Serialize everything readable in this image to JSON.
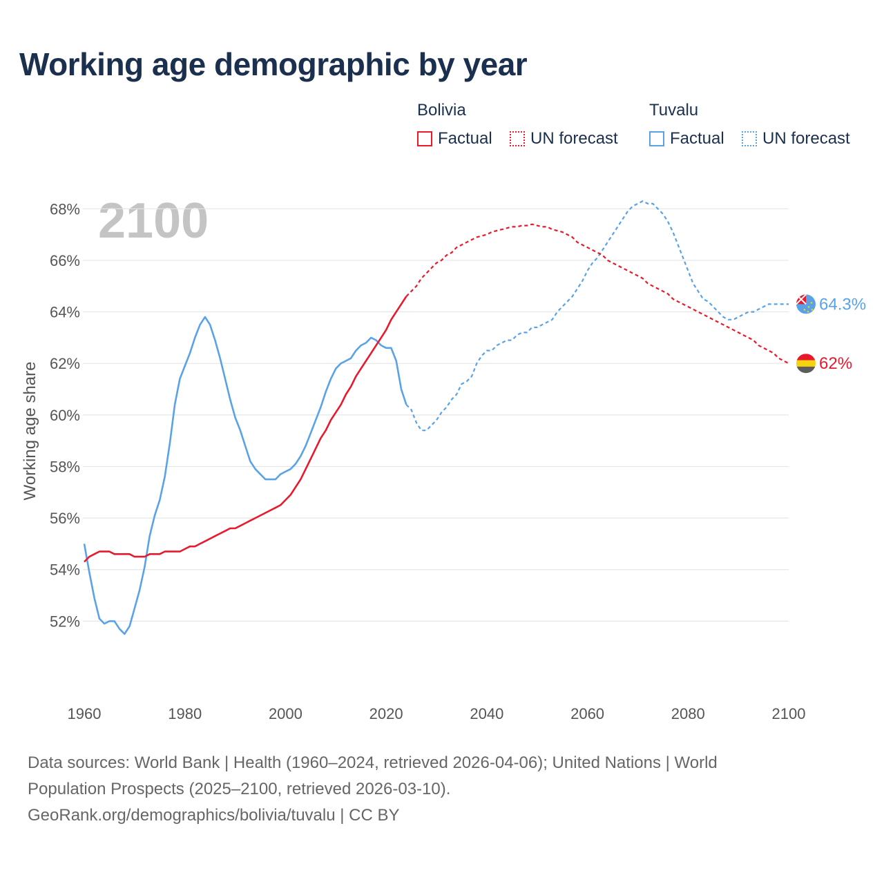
{
  "title": "Working age demographic by year",
  "legend": {
    "groups": [
      {
        "country": "Bolivia",
        "factual": "Factual",
        "forecast": "UN forecast"
      },
      {
        "country": "Tuvalu",
        "factual": "Factual",
        "forecast": "UN forecast"
      }
    ]
  },
  "colors": {
    "bolivia": "#e8192c",
    "tuvalu": "#5aa2e8",
    "grid": "#e6e6e6",
    "axis_text": "#555555",
    "year_watermark": "#c4c4c4"
  },
  "footer": {
    "line1": "Data sources: World Bank | Health (1960–2024, retrieved 2026-04-06); United Nations | World",
    "line2": "Population Prospects (2025–2100, retrieved 2026-03-10).",
    "line3": "GeoRank.org/demographics/bolivia/tuvalu | CC BY"
  },
  "chart_data": {
    "type": "line",
    "year_label": "2100",
    "ylabel": "Working age share",
    "xlim": [
      1960,
      2100
    ],
    "ylim": [
      50,
      69
    ],
    "x_ticks": [
      1960,
      1980,
      2000,
      2020,
      2040,
      2060,
      2080,
      2100
    ],
    "y_ticks": [
      52,
      54,
      56,
      58,
      60,
      62,
      64,
      66,
      68
    ],
    "y_tick_labels": [
      "52%",
      "54%",
      "56%",
      "58%",
      "60%",
      "62%",
      "64%",
      "66%",
      "68%"
    ],
    "x_tick_labels": [
      "1960",
      "1980",
      "2000",
      "2020",
      "2040",
      "2060",
      "2080",
      "2100"
    ],
    "series": [
      {
        "name": "Bolivia",
        "factual_years": [
          1960,
          2024
        ],
        "forecast_years": [
          2024,
          2100
        ],
        "end_label": "62%",
        "points": [
          [
            1960,
            54.3
          ],
          [
            1961,
            54.5
          ],
          [
            1962,
            54.6
          ],
          [
            1963,
            54.7
          ],
          [
            1964,
            54.7
          ],
          [
            1965,
            54.7
          ],
          [
            1966,
            54.6
          ],
          [
            1967,
            54.6
          ],
          [
            1968,
            54.6
          ],
          [
            1969,
            54.6
          ],
          [
            1970,
            54.5
          ],
          [
            1971,
            54.5
          ],
          [
            1972,
            54.5
          ],
          [
            1973,
            54.6
          ],
          [
            1974,
            54.6
          ],
          [
            1975,
            54.6
          ],
          [
            1976,
            54.7
          ],
          [
            1977,
            54.7
          ],
          [
            1978,
            54.7
          ],
          [
            1979,
            54.7
          ],
          [
            1980,
            54.8
          ],
          [
            1981,
            54.9
          ],
          [
            1982,
            54.9
          ],
          [
            1983,
            55.0
          ],
          [
            1984,
            55.1
          ],
          [
            1985,
            55.2
          ],
          [
            1986,
            55.3
          ],
          [
            1987,
            55.4
          ],
          [
            1988,
            55.5
          ],
          [
            1989,
            55.6
          ],
          [
            1990,
            55.6
          ],
          [
            1991,
            55.7
          ],
          [
            1992,
            55.8
          ],
          [
            1993,
            55.9
          ],
          [
            1994,
            56.0
          ],
          [
            1995,
            56.1
          ],
          [
            1996,
            56.2
          ],
          [
            1997,
            56.3
          ],
          [
            1998,
            56.4
          ],
          [
            1999,
            56.5
          ],
          [
            2000,
            56.7
          ],
          [
            2001,
            56.9
          ],
          [
            2002,
            57.2
          ],
          [
            2003,
            57.5
          ],
          [
            2004,
            57.9
          ],
          [
            2005,
            58.3
          ],
          [
            2006,
            58.7
          ],
          [
            2007,
            59.1
          ],
          [
            2008,
            59.4
          ],
          [
            2009,
            59.8
          ],
          [
            2010,
            60.1
          ],
          [
            2011,
            60.4
          ],
          [
            2012,
            60.8
          ],
          [
            2013,
            61.1
          ],
          [
            2014,
            61.5
          ],
          [
            2015,
            61.8
          ],
          [
            2016,
            62.1
          ],
          [
            2017,
            62.4
          ],
          [
            2018,
            62.7
          ],
          [
            2019,
            63.0
          ],
          [
            2020,
            63.3
          ],
          [
            2021,
            63.7
          ],
          [
            2022,
            64.0
          ],
          [
            2023,
            64.3
          ],
          [
            2024,
            64.6
          ],
          [
            2025,
            64.8
          ],
          [
            2026,
            65.0
          ],
          [
            2027,
            65.3
          ],
          [
            2028,
            65.5
          ],
          [
            2029,
            65.7
          ],
          [
            2030,
            65.9
          ],
          [
            2031,
            66.0
          ],
          [
            2032,
            66.2
          ],
          [
            2033,
            66.3
          ],
          [
            2034,
            66.5
          ],
          [
            2035,
            66.6
          ],
          [
            2036,
            66.7
          ],
          [
            2037,
            66.8
          ],
          [
            2038,
            66.9
          ],
          [
            2039,
            66.95
          ],
          [
            2040,
            67.0
          ],
          [
            2041,
            67.1
          ],
          [
            2042,
            67.15
          ],
          [
            2043,
            67.2
          ],
          [
            2044,
            67.25
          ],
          [
            2045,
            67.3
          ],
          [
            2046,
            67.3
          ],
          [
            2047,
            67.35
          ],
          [
            2048,
            67.35
          ],
          [
            2049,
            67.4
          ],
          [
            2050,
            67.35
          ],
          [
            2051,
            67.3
          ],
          [
            2052,
            67.3
          ],
          [
            2053,
            67.2
          ],
          [
            2054,
            67.15
          ],
          [
            2055,
            67.1
          ],
          [
            2056,
            67.0
          ],
          [
            2057,
            66.9
          ],
          [
            2058,
            66.7
          ],
          [
            2059,
            66.6
          ],
          [
            2060,
            66.5
          ],
          [
            2061,
            66.4
          ],
          [
            2062,
            66.3
          ],
          [
            2063,
            66.2
          ],
          [
            2064,
            66.0
          ],
          [
            2065,
            65.9
          ],
          [
            2066,
            65.8
          ],
          [
            2067,
            65.7
          ],
          [
            2068,
            65.6
          ],
          [
            2069,
            65.5
          ],
          [
            2070,
            65.4
          ],
          [
            2071,
            65.3
          ],
          [
            2072,
            65.1
          ],
          [
            2073,
            65.0
          ],
          [
            2074,
            64.9
          ],
          [
            2075,
            64.8
          ],
          [
            2076,
            64.7
          ],
          [
            2077,
            64.5
          ],
          [
            2078,
            64.4
          ],
          [
            2079,
            64.3
          ],
          [
            2080,
            64.2
          ],
          [
            2081,
            64.1
          ],
          [
            2082,
            64.0
          ],
          [
            2083,
            63.9
          ],
          [
            2084,
            63.8
          ],
          [
            2085,
            63.7
          ],
          [
            2086,
            63.6
          ],
          [
            2087,
            63.5
          ],
          [
            2088,
            63.4
          ],
          [
            2089,
            63.3
          ],
          [
            2090,
            63.2
          ],
          [
            2091,
            63.1
          ],
          [
            2092,
            63.0
          ],
          [
            2093,
            62.9
          ],
          [
            2094,
            62.7
          ],
          [
            2095,
            62.6
          ],
          [
            2096,
            62.5
          ],
          [
            2097,
            62.4
          ],
          [
            2098,
            62.2
          ],
          [
            2099,
            62.1
          ],
          [
            2100,
            62.0
          ]
        ]
      },
      {
        "name": "Tuvalu",
        "factual_years": [
          1960,
          2024
        ],
        "forecast_years": [
          2024,
          2100
        ],
        "end_label": "64.3%",
        "points": [
          [
            1960,
            55.0
          ],
          [
            1961,
            53.9
          ],
          [
            1962,
            52.9
          ],
          [
            1963,
            52.1
          ],
          [
            1964,
            51.9
          ],
          [
            1965,
            52.0
          ],
          [
            1966,
            52.0
          ],
          [
            1967,
            51.7
          ],
          [
            1968,
            51.5
          ],
          [
            1969,
            51.8
          ],
          [
            1970,
            52.5
          ],
          [
            1971,
            53.2
          ],
          [
            1972,
            54.1
          ],
          [
            1973,
            55.3
          ],
          [
            1974,
            56.1
          ],
          [
            1975,
            56.7
          ],
          [
            1976,
            57.6
          ],
          [
            1977,
            58.9
          ],
          [
            1978,
            60.4
          ],
          [
            1979,
            61.4
          ],
          [
            1980,
            61.9
          ],
          [
            1981,
            62.4
          ],
          [
            1982,
            63.0
          ],
          [
            1983,
            63.5
          ],
          [
            1984,
            63.8
          ],
          [
            1985,
            63.5
          ],
          [
            1986,
            62.9
          ],
          [
            1987,
            62.2
          ],
          [
            1988,
            61.4
          ],
          [
            1989,
            60.6
          ],
          [
            1990,
            59.9
          ],
          [
            1991,
            59.4
          ],
          [
            1992,
            58.8
          ],
          [
            1993,
            58.2
          ],
          [
            1994,
            57.9
          ],
          [
            1995,
            57.7
          ],
          [
            1996,
            57.5
          ],
          [
            1997,
            57.5
          ],
          [
            1998,
            57.5
          ],
          [
            1999,
            57.7
          ],
          [
            2000,
            57.8
          ],
          [
            2001,
            57.9
          ],
          [
            2002,
            58.1
          ],
          [
            2003,
            58.4
          ],
          [
            2004,
            58.8
          ],
          [
            2005,
            59.3
          ],
          [
            2006,
            59.8
          ],
          [
            2007,
            60.3
          ],
          [
            2008,
            60.9
          ],
          [
            2009,
            61.4
          ],
          [
            2010,
            61.8
          ],
          [
            2011,
            62.0
          ],
          [
            2012,
            62.1
          ],
          [
            2013,
            62.2
          ],
          [
            2014,
            62.5
          ],
          [
            2015,
            62.7
          ],
          [
            2016,
            62.8
          ],
          [
            2017,
            63.0
          ],
          [
            2018,
            62.9
          ],
          [
            2019,
            62.7
          ],
          [
            2020,
            62.6
          ],
          [
            2021,
            62.6
          ],
          [
            2022,
            62.1
          ],
          [
            2023,
            61.0
          ],
          [
            2024,
            60.4
          ],
          [
            2025,
            60.2
          ],
          [
            2026,
            59.7
          ],
          [
            2027,
            59.4
          ],
          [
            2028,
            59.4
          ],
          [
            2029,
            59.6
          ],
          [
            2030,
            59.8
          ],
          [
            2031,
            60.1
          ],
          [
            2032,
            60.3
          ],
          [
            2033,
            60.6
          ],
          [
            2034,
            60.8
          ],
          [
            2035,
            61.2
          ],
          [
            2036,
            61.3
          ],
          [
            2037,
            61.5
          ],
          [
            2038,
            62.0
          ],
          [
            2039,
            62.3
          ],
          [
            2040,
            62.5
          ],
          [
            2041,
            62.5
          ],
          [
            2042,
            62.7
          ],
          [
            2043,
            62.8
          ],
          [
            2044,
            62.9
          ],
          [
            2045,
            62.9
          ],
          [
            2046,
            63.1
          ],
          [
            2047,
            63.2
          ],
          [
            2048,
            63.2
          ],
          [
            2049,
            63.4
          ],
          [
            2050,
            63.4
          ],
          [
            2051,
            63.5
          ],
          [
            2052,
            63.6
          ],
          [
            2053,
            63.7
          ],
          [
            2054,
            64.0
          ],
          [
            2055,
            64.2
          ],
          [
            2056,
            64.4
          ],
          [
            2057,
            64.6
          ],
          [
            2058,
            64.9
          ],
          [
            2059,
            65.2
          ],
          [
            2060,
            65.6
          ],
          [
            2061,
            65.9
          ],
          [
            2062,
            66.1
          ],
          [
            2063,
            66.4
          ],
          [
            2064,
            66.7
          ],
          [
            2065,
            67.0
          ],
          [
            2066,
            67.3
          ],
          [
            2067,
            67.6
          ],
          [
            2068,
            67.9
          ],
          [
            2069,
            68.1
          ],
          [
            2070,
            68.2
          ],
          [
            2071,
            68.3
          ],
          [
            2072,
            68.2
          ],
          [
            2073,
            68.2
          ],
          [
            2074,
            68.0
          ],
          [
            2075,
            67.8
          ],
          [
            2076,
            67.5
          ],
          [
            2077,
            67.1
          ],
          [
            2078,
            66.6
          ],
          [
            2079,
            66.1
          ],
          [
            2080,
            65.6
          ],
          [
            2081,
            65.1
          ],
          [
            2082,
            64.8
          ],
          [
            2083,
            64.5
          ],
          [
            2084,
            64.4
          ],
          [
            2085,
            64.2
          ],
          [
            2086,
            64.0
          ],
          [
            2087,
            63.8
          ],
          [
            2088,
            63.7
          ],
          [
            2089,
            63.7
          ],
          [
            2090,
            63.8
          ],
          [
            2091,
            63.9
          ],
          [
            2092,
            64.0
          ],
          [
            2093,
            64.0
          ],
          [
            2094,
            64.1
          ],
          [
            2095,
            64.2
          ],
          [
            2096,
            64.3
          ],
          [
            2097,
            64.3
          ],
          [
            2098,
            64.3
          ],
          [
            2099,
            64.3
          ],
          [
            2100,
            64.3
          ]
        ]
      }
    ]
  }
}
